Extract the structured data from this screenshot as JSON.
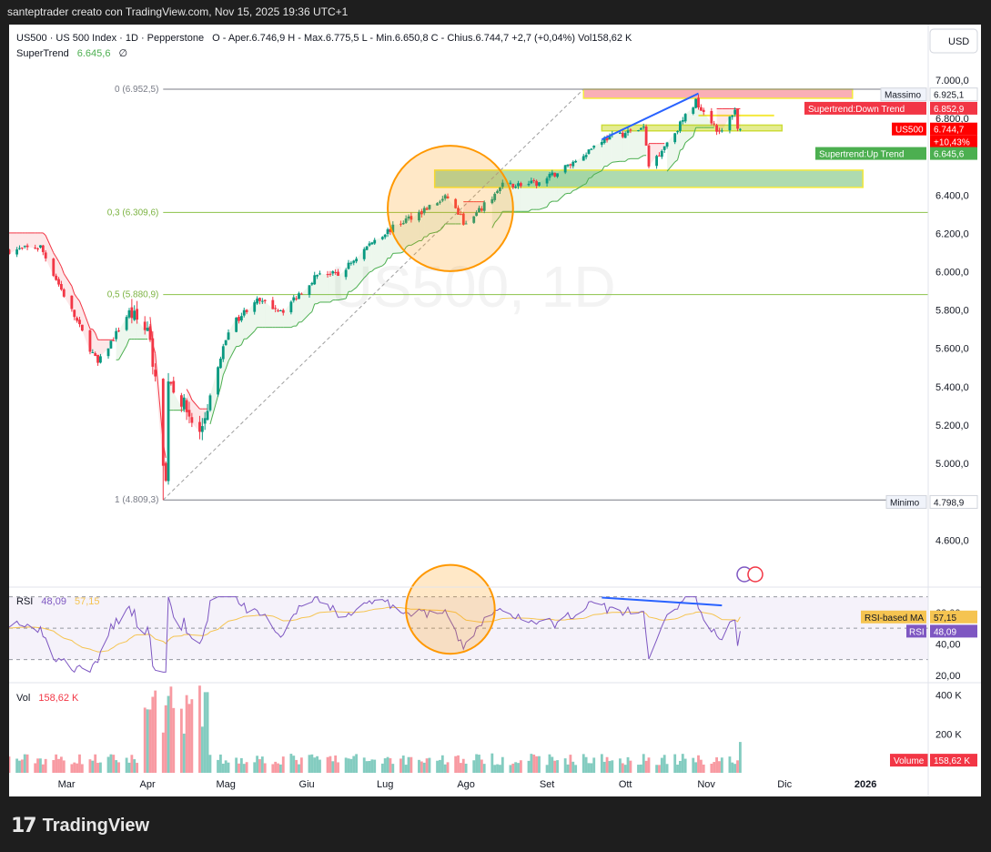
{
  "header": {
    "attribution": "santeptrader creato con TradingView.com, Nov 15, 2025 19:36 UTC+1"
  },
  "legend": {
    "symbol_line": "US500 · US 500 Index · 1D · Pepperstone",
    "ohlc_text": "O - Aper.6.746,9   H - Max.6.775,5   L - Min.6.650,8   C - Chius.6.744,7   +2,7 (+0,04%)   Vol158,62 K",
    "supertrend_label": "SuperTrend",
    "supertrend_value": "6.645,6",
    "supertrend_extra": "∅"
  },
  "currency_button": "USD",
  "footer": {
    "brand": "TradingView",
    "mark": "17"
  },
  "colors": {
    "up": "#089981",
    "down": "#f23645",
    "st_up": "#4caf50",
    "st_down": "#f23645",
    "rsi": "#7e57c2",
    "rsi_ma": "#f5c451",
    "fib": "#8bc34a",
    "highlight_circle": "#ff9800"
  },
  "chart_data": {
    "type": "candlestick",
    "symbol": "US500",
    "timeframe": "1D",
    "price_axis_ticks": [
      7000,
      6800,
      6400,
      6200,
      6000,
      5800,
      5600,
      5400,
      5200,
      5000,
      4600
    ],
    "price_tick_labels": [
      "7.000,0",
      "6.800,0",
      "6.400,0",
      "6.200,0",
      "6.000,0",
      "5.800,0",
      "5.600,0",
      "5.400,0",
      "5.200,0",
      "5.000,0",
      "4.600,0"
    ],
    "ylim": [
      4440,
      7090
    ],
    "months": [
      "Mar",
      "Apr",
      "Mag",
      "Giu",
      "Lug",
      "Ago",
      "Set",
      "Ott",
      "Nov",
      "Dic",
      "2026"
    ],
    "month_values": [
      "2025-03-01",
      "2025-04-01",
      "2025-05-01",
      "2025-06-01",
      "2025-07-01",
      "2025-08-01",
      "2025-09-01",
      "2025-10-01",
      "2025-11-01",
      "2025-12-01",
      "2026-01-01"
    ],
    "x_range": [
      "2025-02-07",
      "2026-01-25"
    ],
    "last_close": {
      "label": "US500",
      "value": "6.744,7",
      "change": "+10,43%"
    },
    "labels": {
      "max": {
        "name": "Massimo",
        "value": "6.925,1"
      },
      "min": {
        "name": "Minimo",
        "value": "4.798,9"
      },
      "st_down": {
        "name": "Supertrend:Down Trend",
        "value": "6.852,9"
      },
      "st_up": {
        "name": "Supertrend:Up Trend",
        "value": "6.645,6"
      }
    },
    "fib_levels": [
      {
        "label": "0 (6.952,5)",
        "value": 6952.5
      },
      {
        "label": "0,3 (6.309,6)",
        "value": 6309.6
      },
      {
        "label": "0,5 (5.880,9)",
        "value": 5880.9
      },
      {
        "label": "1 (4.809,3)",
        "value": 4809.3
      }
    ],
    "anchors": [
      [
        "2025-02-07",
        6110
      ],
      [
        "2025-02-19",
        6130
      ],
      [
        "2025-03-10",
        5600
      ],
      [
        "2025-03-13",
        5520
      ],
      [
        "2025-03-25",
        5790
      ],
      [
        "2025-04-02",
        5670
      ],
      [
        "2025-04-08",
        4900
      ],
      [
        "2025-04-09",
        5450
      ],
      [
        "2025-04-21",
        5150
      ],
      [
        "2025-05-02",
        5700
      ],
      [
        "2025-05-12",
        5850
      ],
      [
        "2025-05-23",
        5800
      ],
      [
        "2025-06-06",
        6000
      ],
      [
        "2025-06-13",
        5980
      ],
      [
        "2025-06-27",
        6170
      ],
      [
        "2025-07-10",
        6280
      ],
      [
        "2025-07-25",
        6390
      ],
      [
        "2025-08-01",
        6240
      ],
      [
        "2025-08-15",
        6450
      ],
      [
        "2025-08-29",
        6460
      ],
      [
        "2025-09-12",
        6580
      ],
      [
        "2025-09-22",
        6690
      ],
      [
        "2025-10-08",
        6750
      ],
      [
        "2025-10-10",
        6550
      ],
      [
        "2025-10-20",
        6730
      ],
      [
        "2025-10-28",
        6890
      ],
      [
        "2025-11-04",
        6770
      ],
      [
        "2025-11-06",
        6720
      ],
      [
        "2025-11-07",
        6730
      ],
      [
        "2025-11-12",
        6850
      ],
      [
        "2025-11-13",
        6740
      ],
      [
        "2025-11-14",
        6744.7
      ]
    ],
    "zones": [
      {
        "name": "resistance-zone",
        "from": "2025-09-15",
        "to": "2025-12-27",
        "low": 6905,
        "high": 6952
      },
      {
        "name": "support-zone",
        "from": "2025-07-20",
        "to": "2025-12-31",
        "low": 6440,
        "high": 6530
      },
      {
        "name": "mid-zone",
        "from": "2025-09-22",
        "to": "2025-11-30",
        "low": 6735,
        "high": 6765
      }
    ],
    "yellow_line": {
      "from": "2025-10-29",
      "to": "2025-11-27",
      "value": 6815
    },
    "trendline": {
      "from": [
        "2025-09-22",
        6690
      ],
      "to": [
        "2025-10-29",
        6930
      ]
    },
    "diagonal": {
      "from": [
        "2025-04-07",
        4809.3
      ],
      "to": [
        "2025-09-15",
        6952.5
      ]
    },
    "circle": {
      "center": [
        "2025-07-26",
        6330
      ],
      "radius_days": 24
    },
    "rsi": {
      "label": "RSI",
      "value": "48,09",
      "ma_value": "57,15",
      "ma_name": "RSI-based MA",
      "ticks": [
        "60,00",
        "40,00",
        "20,00"
      ],
      "tick_values": [
        60,
        40,
        20
      ],
      "bands": [
        70,
        50,
        30
      ],
      "ylim": [
        17,
        75
      ],
      "divergence": {
        "from": [
          "2025-09-22",
          69.5
        ],
        "to": [
          "2025-11-07",
          64.5
        ]
      },
      "circle": {
        "center": [
          "2025-07-26",
          62
        ],
        "radius_days": 17
      }
    },
    "volume": {
      "label": "Vol",
      "value": "158,62 K",
      "ticks": [
        "400 K",
        "200 K"
      ],
      "tick_values": [
        400,
        200
      ],
      "ymax": 440,
      "name": "Volume"
    }
  }
}
